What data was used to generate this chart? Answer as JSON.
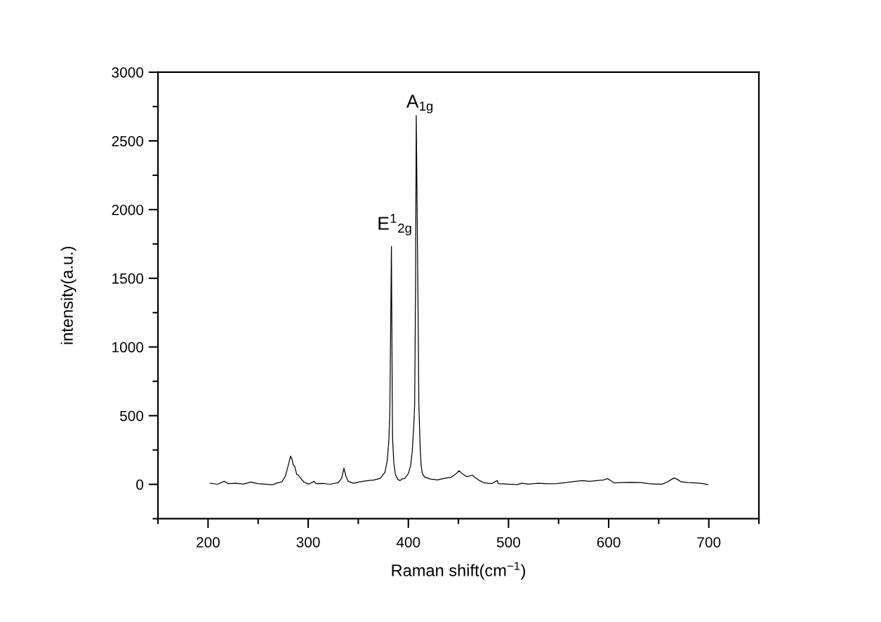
{
  "chart_data": {
    "type": "line",
    "xlabel": "Raman shift(cm$^{−1}$)",
    "ylabel": "intensity(a.u.)",
    "x": [
      202.1,
      209.6,
      216.1,
      220,
      228.3,
      235.3,
      243,
      249.3,
      256.3,
      264.4,
      268,
      273.8,
      277.3,
      280.1,
      282.4,
      283.8,
      285.2,
      286.6,
      288.5,
      290.4,
      292.5,
      296,
      300.7,
      306,
      307.7,
      314.7,
      321.7,
      329.9,
      333.4,
      335.7,
      337.6,
      339.9,
      345,
      354.4,
      361.4,
      366,
      371.9,
      376.6,
      378.9,
      380.6,
      381.5,
      382.3,
      383.1,
      383.5,
      384.0,
      384.3,
      385.5,
      387.1,
      389.5,
      391.8,
      393.6,
      396.5,
      400,
      402.3,
      403.9,
      405.3,
      406.3,
      407.2,
      407.9,
      409.5,
      410.5,
      411.2,
      411.9,
      412.8,
      414,
      416.3,
      422.1,
      429.1,
      436.1,
      443.1,
      447.8,
      450.6,
      453.7,
      458.3,
      464.2,
      466.5,
      471.2,
      475.9,
      482.9,
      488.7,
      489.9,
      499.2,
      508.6,
      513.2,
      520.2,
      529.6,
      538.9,
      548.3,
      557.6,
      567,
      574,
      581,
      588,
      595.1,
      599.2,
      602.1,
      605.5,
      613.7,
      623,
      632.3,
      639.4,
      646.4,
      653.4,
      658.1,
      662.8,
      665.6,
      668.6,
      672.1,
      679.1,
      686.1,
      693.1,
      699.2
    ],
    "series": [
      {
        "color": "#000000",
        "values": [
          8,
          1,
          22,
          5,
          8,
          2,
          17,
          5,
          1,
          -3,
          8,
          18,
          61,
          138,
          206,
          181,
          141,
          130,
          73,
          66,
          44,
          15,
          2,
          22,
          5,
          7,
          1,
          12,
          44,
          118,
          61,
          22,
          8,
          22,
          28,
          32,
          44,
          87,
          172,
          326,
          531,
          1100,
          1732,
          1200,
          531,
          326,
          155,
          70,
          36,
          27,
          39,
          44,
          78,
          138,
          241,
          411,
          582,
          1435,
          2685,
          1435,
          582,
          411,
          241,
          138,
          78,
          53,
          39,
          32,
          44,
          53,
          78,
          99,
          78,
          56,
          66,
          49,
          27,
          10,
          5,
          27,
          5,
          2,
          -2,
          8,
          2,
          8,
          4,
          6,
          13,
          22,
          27,
          22,
          27,
          32,
          42,
          26,
          10,
          13,
          15,
          13,
          5,
          2,
          2,
          15,
          36,
          46,
          36,
          19,
          13,
          10,
          7,
          -2
        ]
      }
    ],
    "xlim": [
      150,
      750
    ],
    "xticks": [
      {
        "value": 150,
        "label": null
      },
      200,
      {
        "value": 250,
        "label": null
      },
      300,
      {
        "value": 350,
        "label": null
      },
      400,
      {
        "value": 450,
        "label": null
      },
      500,
      {
        "value": 550,
        "label": null
      },
      600,
      {
        "value": 650,
        "label": null
      },
      700,
      {
        "value": 750,
        "label": null
      }
    ],
    "ylim": [
      -250,
      3000
    ],
    "yticks": [
      {
        "value": -250,
        "label": null
      },
      0,
      {
        "value": 250,
        "label": null
      },
      500,
      {
        "value": 750,
        "label": null
      },
      1000,
      {
        "value": 1250,
        "label": null
      },
      1500,
      {
        "value": 1750,
        "label": null
      },
      2000,
      {
        "value": 2250,
        "label": null
      },
      2500,
      {
        "value": 2750,
        "label": null
      },
      3000
    ],
    "annotations": [
      {
        "text": "E$^{1}$$_{2g}$",
        "x": 383.1,
        "y": 1732
      },
      {
        "text": "A$_{1g}$",
        "x": 407.9,
        "y": 2685
      }
    ],
    "grid": false,
    "legend": false
  }
}
